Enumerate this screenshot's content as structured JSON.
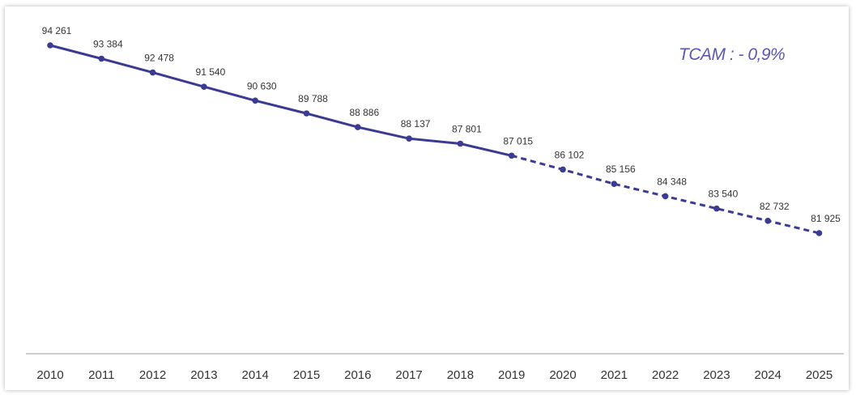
{
  "chart_data": {
    "type": "line",
    "x": [
      "2010",
      "2011",
      "2012",
      "2013",
      "2014",
      "2015",
      "2016",
      "2017",
      "2018",
      "2019",
      "2020",
      "2021",
      "2022",
      "2023",
      "2024",
      "2025"
    ],
    "series": [
      {
        "values": [
          94261,
          93384,
          92478,
          91540,
          90630,
          89788,
          88886,
          88137,
          87801,
          87015,
          86102,
          85156,
          84348,
          83540,
          82732,
          81925
        ],
        "labels": [
          "94 261",
          "93 384",
          "92 478",
          "91 540",
          "90 630",
          "89 788",
          "88 886",
          "88 137",
          "87 801",
          "87 015",
          "86 102",
          "85 156",
          "84 348",
          "83 540",
          "82 732",
          "81 925"
        ],
        "style_note": "solid through 2019, dashed projection 2019–2025",
        "dashed_from_index": 9,
        "color": "#3b3b93"
      }
    ],
    "annotation": "TCAM : - 0,9%",
    "grid": false,
    "legend": "none"
  },
  "colors": {
    "line": "#3b3b93",
    "annotation": "#5b56b0",
    "axis": "#bdbdbd",
    "text": "#333333"
  }
}
